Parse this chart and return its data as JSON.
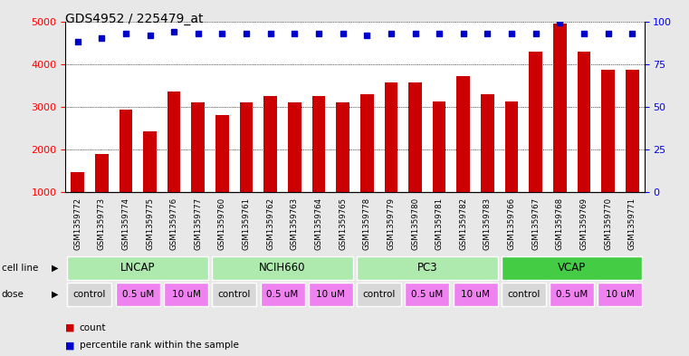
{
  "title": "GDS4952 / 225479_at",
  "samples": [
    "GSM1359772",
    "GSM1359773",
    "GSM1359774",
    "GSM1359775",
    "GSM1359776",
    "GSM1359777",
    "GSM1359760",
    "GSM1359761",
    "GSM1359762",
    "GSM1359763",
    "GSM1359764",
    "GSM1359765",
    "GSM1359778",
    "GSM1359779",
    "GSM1359780",
    "GSM1359781",
    "GSM1359782",
    "GSM1359783",
    "GSM1359766",
    "GSM1359767",
    "GSM1359768",
    "GSM1359769",
    "GSM1359770",
    "GSM1359771"
  ],
  "counts": [
    1480,
    1900,
    2930,
    2430,
    3350,
    3100,
    2800,
    3100,
    3250,
    3100,
    3250,
    3100,
    3300,
    3560,
    3560,
    3130,
    3720,
    3300,
    3130,
    4300,
    4950,
    4300,
    3870,
    3870
  ],
  "percentile_ranks": [
    88,
    90,
    93,
    92,
    94,
    93,
    93,
    93,
    93,
    93,
    93,
    93,
    92,
    93,
    93,
    93,
    93,
    93,
    93,
    93,
    99,
    93,
    93,
    93
  ],
  "cell_lines": [
    {
      "name": "LNCAP",
      "start": 0,
      "end": 6,
      "color": "#aeeaae"
    },
    {
      "name": "NCIH660",
      "start": 6,
      "end": 12,
      "color": "#aeeaae"
    },
    {
      "name": "PC3",
      "start": 12,
      "end": 18,
      "color": "#aeeaae"
    },
    {
      "name": "VCAP",
      "start": 18,
      "end": 24,
      "color": "#44cc44"
    }
  ],
  "doses": [
    {
      "label": "control",
      "start": 0,
      "end": 2,
      "color": "#d8d8d8"
    },
    {
      "label": "0.5 uM",
      "start": 2,
      "end": 4,
      "color": "#ee82ee"
    },
    {
      "label": "10 uM",
      "start": 4,
      "end": 6,
      "color": "#ee82ee"
    },
    {
      "label": "control",
      "start": 6,
      "end": 8,
      "color": "#d8d8d8"
    },
    {
      "label": "0.5 uM",
      "start": 8,
      "end": 10,
      "color": "#ee82ee"
    },
    {
      "label": "10 uM",
      "start": 10,
      "end": 12,
      "color": "#ee82ee"
    },
    {
      "label": "control",
      "start": 12,
      "end": 14,
      "color": "#d8d8d8"
    },
    {
      "label": "0.5 uM",
      "start": 14,
      "end": 16,
      "color": "#ee82ee"
    },
    {
      "label": "10 uM",
      "start": 16,
      "end": 18,
      "color": "#ee82ee"
    },
    {
      "label": "control",
      "start": 18,
      "end": 20,
      "color": "#d8d8d8"
    },
    {
      "label": "0.5 uM",
      "start": 20,
      "end": 22,
      "color": "#ee82ee"
    },
    {
      "label": "10 uM",
      "start": 22,
      "end": 24,
      "color": "#ee82ee"
    }
  ],
  "bar_color": "#cc0000",
  "dot_color": "#0000cc",
  "ylim_left": [
    1000,
    5000
  ],
  "ylim_right": [
    0,
    100
  ],
  "yticks_left": [
    1000,
    2000,
    3000,
    4000,
    5000
  ],
  "yticks_right": [
    0,
    25,
    50,
    75,
    100
  ],
  "background_color": "#e8e8e8",
  "plot_bg_color": "#ffffff",
  "xticklabel_bg_color": "#cccccc"
}
